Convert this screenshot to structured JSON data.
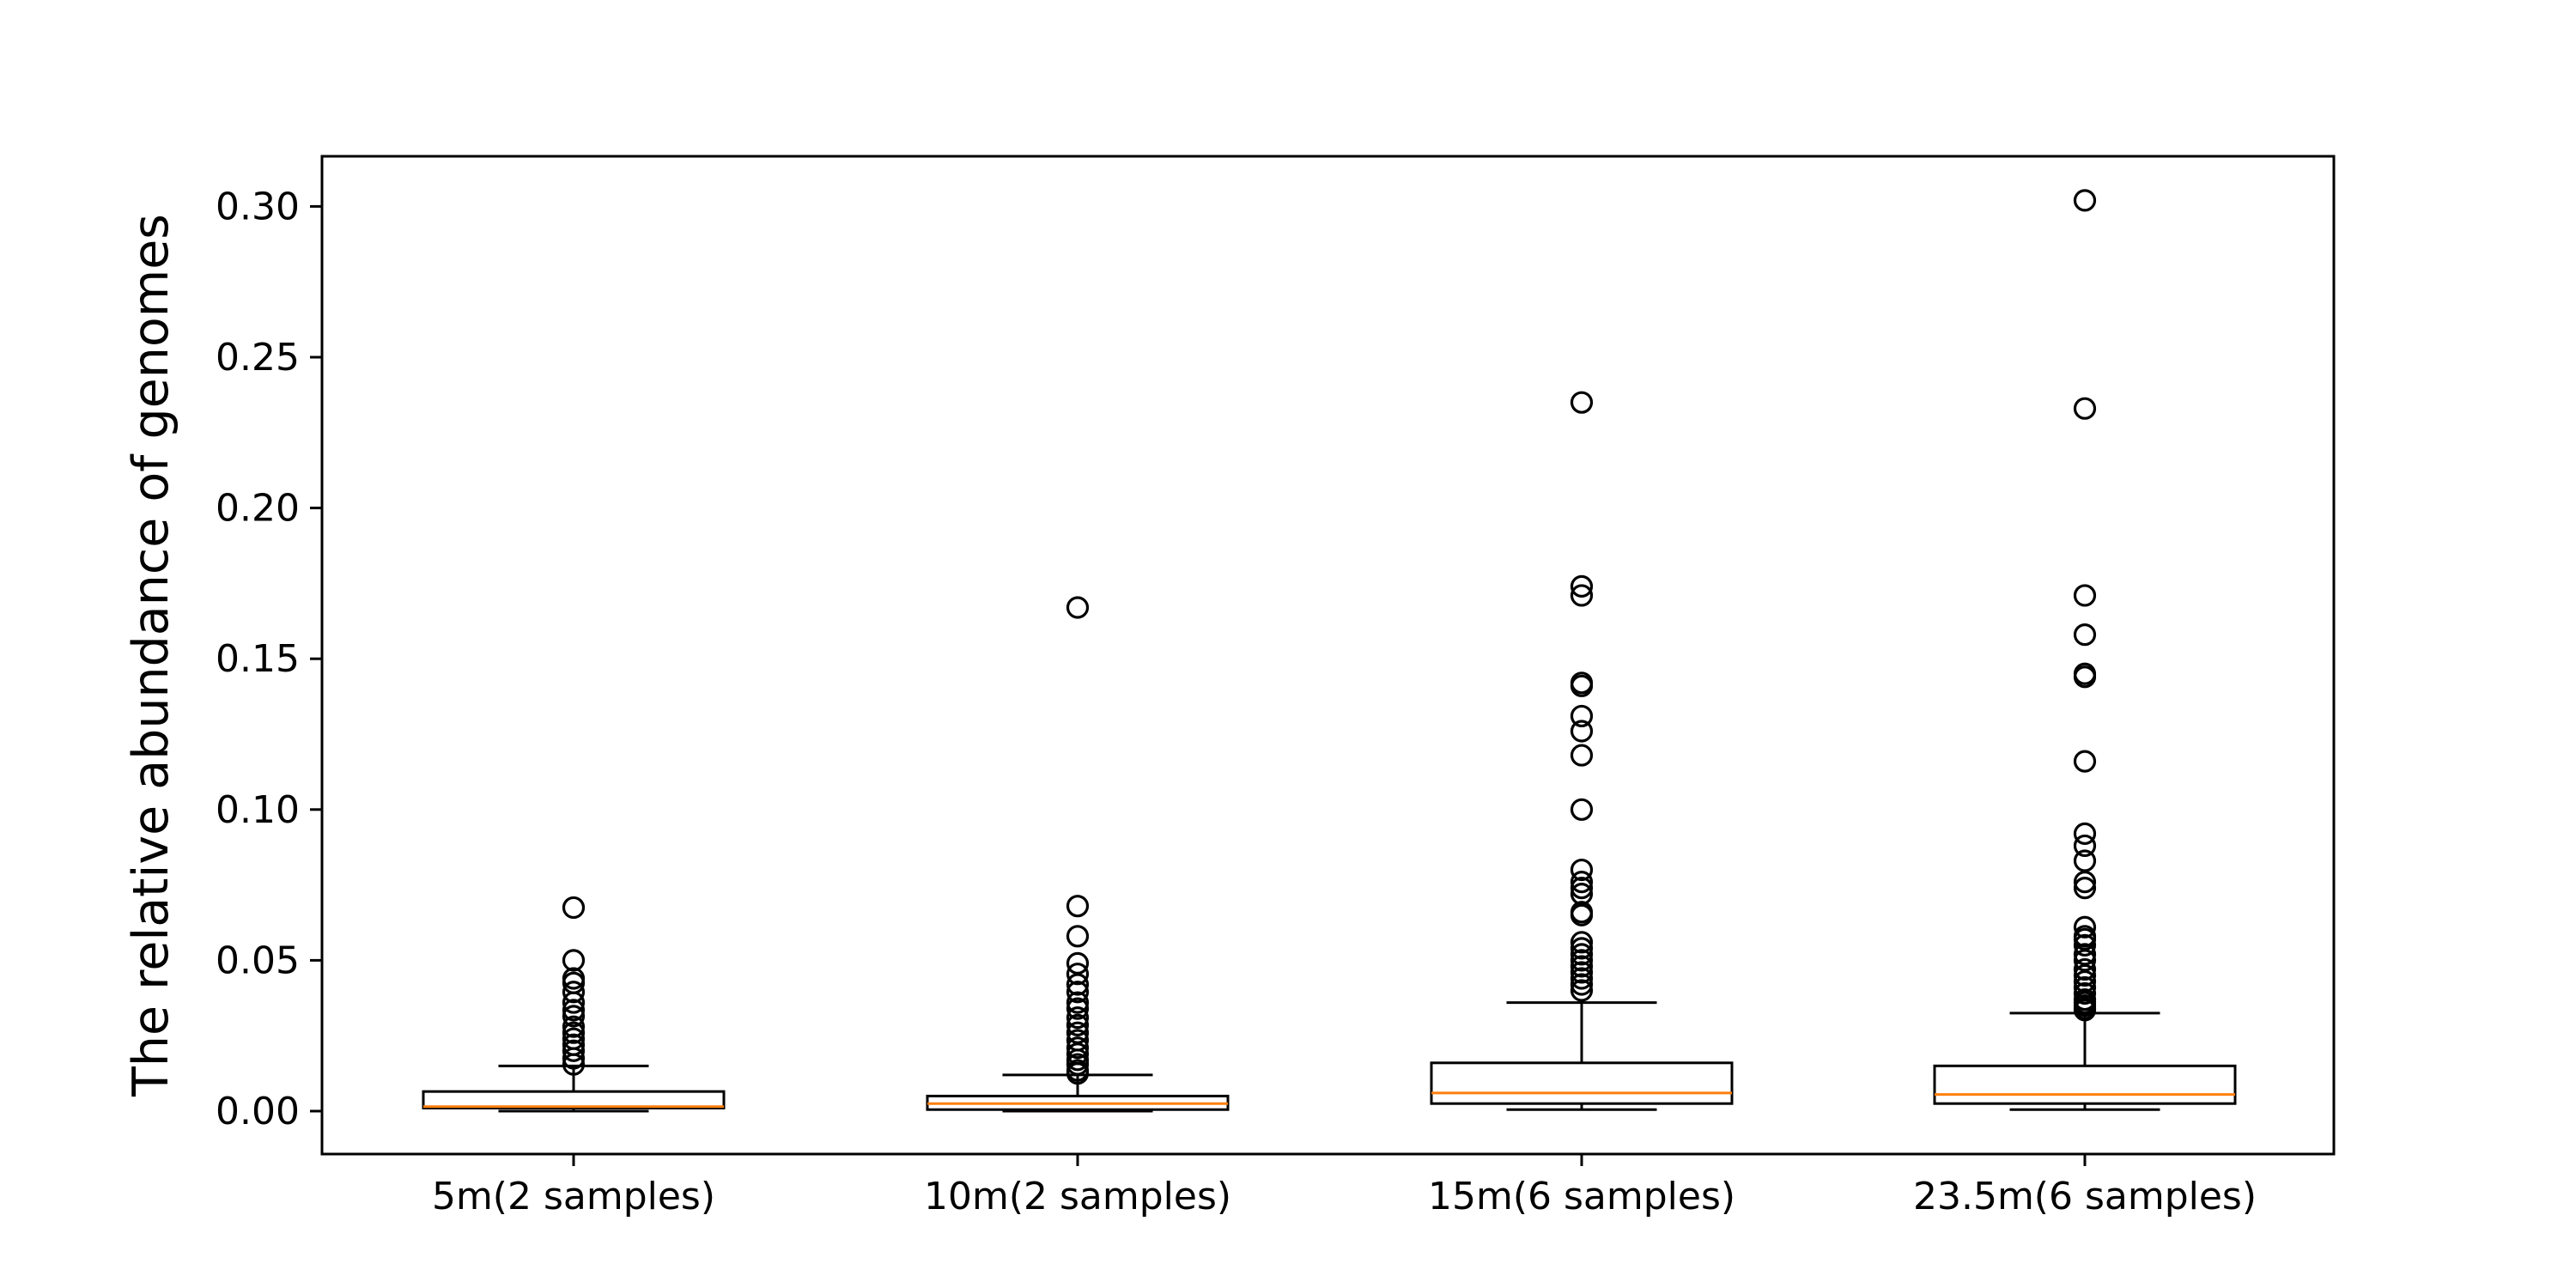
{
  "chart_data": {
    "type": "box",
    "title": "",
    "xlabel": "",
    "ylabel": "The relative abundance of genomes",
    "ylim": [
      -0.015,
      0.318
    ],
    "yticks": [
      0.0,
      0.05,
      0.1,
      0.15,
      0.2,
      0.25,
      0.3
    ],
    "ytick_labels": [
      "0.00",
      "0.05",
      "0.10",
      "0.15",
      "0.20",
      "0.25",
      "0.30"
    ],
    "categories": [
      "5m(2 samples)",
      "10m(2 samples)",
      "15m(6 samples)",
      "23.5m(6 samples)"
    ],
    "grid": false,
    "colors": {
      "box": "#000000",
      "median": "#ff7f0e",
      "flier": "#000000"
    },
    "boxes": [
      {
        "label": "5m(2 samples)",
        "whisker_low": 0.0,
        "q1": 0.001,
        "median": 0.0015,
        "q3": 0.0065,
        "whisker_high": 0.015,
        "fliers": [
          0.0675,
          0.05,
          0.044,
          0.0425,
          0.0395,
          0.036,
          0.0335,
          0.0315,
          0.028,
          0.026,
          0.024,
          0.022,
          0.02,
          0.0175,
          0.0155
        ]
      },
      {
        "label": "10m(2 samples)",
        "whisker_low": 0.0,
        "q1": 0.0005,
        "median": 0.0025,
        "q3": 0.005,
        "whisker_high": 0.012,
        "fliers": [
          0.167,
          0.068,
          0.058,
          0.049,
          0.0455,
          0.042,
          0.0395,
          0.036,
          0.034,
          0.031,
          0.0285,
          0.026,
          0.0235,
          0.021,
          0.019,
          0.017,
          0.0155,
          0.0135,
          0.0125
        ]
      },
      {
        "label": "15m(6 samples)",
        "whisker_low": 0.0005,
        "q1": 0.0025,
        "median": 0.006,
        "q3": 0.016,
        "whisker_high": 0.036,
        "fliers": [
          0.235,
          0.174,
          0.171,
          0.142,
          0.141,
          0.131,
          0.126,
          0.118,
          0.1,
          0.08,
          0.076,
          0.074,
          0.072,
          0.066,
          0.065,
          0.056,
          0.054,
          0.052,
          0.05,
          0.048,
          0.046,
          0.044,
          0.042,
          0.04
        ]
      },
      {
        "label": "23.5m(6 samples)",
        "whisker_low": 0.0005,
        "q1": 0.0025,
        "median": 0.0055,
        "q3": 0.015,
        "whisker_high": 0.0325,
        "fliers": [
          0.302,
          0.233,
          0.171,
          0.158,
          0.145,
          0.144,
          0.116,
          0.092,
          0.088,
          0.083,
          0.076,
          0.074,
          0.061,
          0.058,
          0.057,
          0.055,
          0.052,
          0.05,
          0.047,
          0.045,
          0.043,
          0.041,
          0.039,
          0.037,
          0.036,
          0.035,
          0.034,
          0.0335
        ]
      }
    ]
  }
}
